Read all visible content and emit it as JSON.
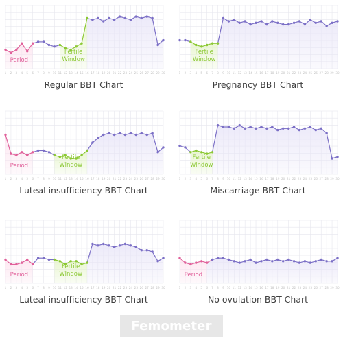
{
  "brand": "Femometer",
  "colors": {
    "period": "#e0609a",
    "fertile": "#8bc832",
    "temp": "#7b6fc6",
    "grid": "#e6e6ee",
    "period_fill": "#fde3ef",
    "fertile_fill": "#e5f4c9",
    "temp_fill": "#e9e6f8",
    "tick": "#c3c3c3"
  },
  "chart_data": [
    {
      "type": "line",
      "title": "Regular BBT Chart",
      "x": [
        1,
        2,
        3,
        4,
        5,
        6,
        7,
        8,
        9,
        10,
        11,
        12,
        13,
        14,
        15,
        16,
        17,
        18,
        19,
        20,
        21,
        22,
        23,
        24,
        25,
        26,
        27,
        28,
        29,
        30
      ],
      "values": [
        36.2,
        36.1,
        36.2,
        36.4,
        36.15,
        36.4,
        36.45,
        36.45,
        36.35,
        36.3,
        36.35,
        36.25,
        36.2,
        36.3,
        36.4,
        37.2,
        37.15,
        37.2,
        37.1,
        37.2,
        37.15,
        37.25,
        37.2,
        37.15,
        37.25,
        37.2,
        37.25,
        37.2,
        36.35,
        36.5
      ],
      "period": {
        "label": "Period",
        "days": [
          1,
          6
        ]
      },
      "fertile": {
        "label": "Fertile Window",
        "days": [
          11,
          16
        ]
      },
      "ylim": [
        35.6,
        37.6
      ]
    },
    {
      "type": "line",
      "title": "Pregnancy BBT Chart",
      "x": [
        1,
        2,
        3,
        4,
        5,
        6,
        7,
        8,
        9,
        10,
        11,
        12,
        13,
        14,
        15,
        16,
        17,
        18,
        19,
        20,
        21,
        22,
        23,
        24,
        25,
        26,
        27,
        28,
        29,
        30
      ],
      "values": [
        36.5,
        36.5,
        36.45,
        36.35,
        36.3,
        36.35,
        36.4,
        36.4,
        37.2,
        37.1,
        37.15,
        37.05,
        37.1,
        37.0,
        37.05,
        37.1,
        37.0,
        37.1,
        37.05,
        37.0,
        37.0,
        37.05,
        37.1,
        37.0,
        37.15,
        37.05,
        37.1,
        36.95,
        37.05,
        37.1
      ],
      "fertile": {
        "label": "Fertile Window",
        "days": [
          3,
          8
        ]
      },
      "ylim": [
        35.6,
        37.6
      ]
    },
    {
      "type": "line",
      "title": "Luteal insufficiency BBT Chart",
      "x": [
        1,
        2,
        3,
        4,
        5,
        6,
        7,
        8,
        9,
        10,
        11,
        12,
        13,
        14,
        15,
        16,
        17,
        18,
        19,
        20,
        21,
        22,
        23,
        24,
        25,
        26,
        27,
        28,
        29,
        30
      ],
      "values": [
        36.85,
        36.25,
        36.2,
        36.3,
        36.2,
        36.3,
        36.35,
        36.35,
        36.3,
        36.2,
        36.15,
        36.2,
        36.1,
        36.1,
        36.2,
        36.35,
        36.6,
        36.75,
        36.85,
        36.9,
        36.85,
        36.9,
        36.85,
        36.9,
        36.85,
        36.9,
        36.85,
        36.9,
        36.3,
        36.45
      ],
      "period": {
        "label": "Period",
        "days": [
          1,
          6
        ]
      },
      "fertile": {
        "label": "Fertile Window",
        "days": [
          10,
          16
        ]
      },
      "ylim": [
        35.6,
        37.6
      ]
    },
    {
      "type": "line",
      "title": "Miscarriage BBT Chart",
      "x": [
        1,
        2,
        3,
        4,
        5,
        6,
        7,
        8,
        9,
        10,
        11,
        12,
        13,
        14,
        15,
        16,
        17,
        18,
        19,
        20,
        21,
        22,
        23,
        24,
        25,
        26,
        27,
        28,
        29,
        30
      ],
      "values": [
        36.5,
        36.45,
        36.3,
        36.35,
        36.3,
        36.25,
        36.3,
        37.15,
        37.1,
        37.1,
        37.05,
        37.15,
        37.05,
        37.1,
        37.05,
        37.1,
        37.05,
        37.1,
        37.0,
        37.05,
        37.05,
        37.1,
        37.0,
        37.05,
        37.1,
        37.0,
        37.05,
        36.9,
        36.1,
        36.15
      ],
      "fertile": {
        "label": "Fertile Window",
        "days": [
          3,
          7
        ]
      },
      "ylim": [
        35.6,
        37.6
      ]
    },
    {
      "type": "line",
      "title": "Luteal insufficiency BBT Chart",
      "x": [
        1,
        2,
        3,
        4,
        5,
        6,
        7,
        8,
        9,
        10,
        11,
        12,
        13,
        14,
        15,
        16,
        17,
        18,
        19,
        20,
        21,
        22,
        23,
        24,
        25,
        26,
        27,
        28,
        29,
        30
      ],
      "values": [
        36.35,
        36.2,
        36.2,
        36.25,
        36.35,
        36.2,
        36.4,
        36.4,
        36.35,
        36.35,
        36.3,
        36.2,
        36.3,
        36.3,
        36.2,
        36.25,
        36.85,
        36.8,
        36.85,
        36.8,
        36.75,
        36.8,
        36.85,
        36.8,
        36.75,
        36.65,
        36.65,
        36.6,
        36.3,
        36.4
      ],
      "period": {
        "label": "Period",
        "days": [
          1,
          6
        ]
      },
      "fertile": {
        "label": "Fertile Window",
        "days": [
          10,
          16
        ]
      },
      "ylim": [
        35.6,
        37.6
      ]
    },
    {
      "type": "line",
      "title": "No ovulation  BBT Chart",
      "x": [
        1,
        2,
        3,
        4,
        5,
        6,
        7,
        8,
        9,
        10,
        11,
        12,
        13,
        14,
        15,
        16,
        17,
        18,
        19,
        20,
        21,
        22,
        23,
        24,
        25,
        26,
        27,
        28,
        29,
        30
      ],
      "values": [
        36.4,
        36.25,
        36.2,
        36.25,
        36.3,
        36.25,
        36.35,
        36.4,
        36.4,
        36.35,
        36.3,
        36.25,
        36.3,
        36.35,
        36.25,
        36.3,
        36.35,
        36.3,
        36.35,
        36.3,
        36.35,
        36.3,
        36.25,
        36.3,
        36.25,
        36.3,
        36.35,
        36.3,
        36.3,
        36.4
      ],
      "period": {
        "label": "Period",
        "days": [
          1,
          6
        ]
      },
      "ylim": [
        35.6,
        37.6
      ]
    }
  ]
}
